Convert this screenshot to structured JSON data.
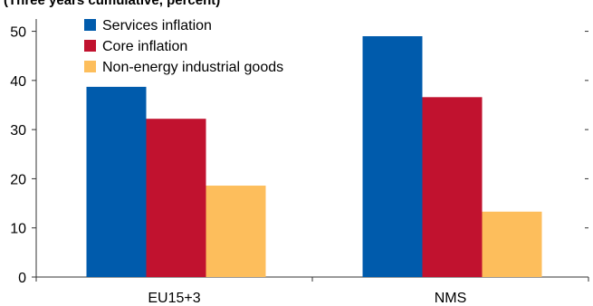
{
  "chart_data": {
    "type": "bar",
    "subtitle": "(Three years cumulative, percent)",
    "categories": [
      "EU15+3",
      "NMS"
    ],
    "series": [
      {
        "name": "Services inflation",
        "values": [
          38.7,
          49.0
        ],
        "color": "#005BAC"
      },
      {
        "name": "Core inflation",
        "values": [
          32.2,
          36.6
        ],
        "color": "#C1122F"
      },
      {
        "name": "Non-energy industrial goods",
        "values": [
          18.6,
          13.3
        ],
        "color": "#FDBE5C"
      }
    ],
    "y_ticks": [
      0,
      10,
      20,
      30,
      40,
      50
    ],
    "ylim": [
      0,
      52.5
    ],
    "grid": false,
    "legend_position": "top-left"
  }
}
